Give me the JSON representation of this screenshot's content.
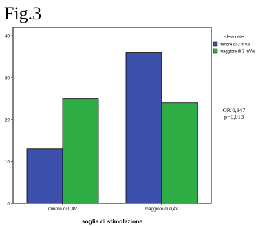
{
  "figure_label": "Fig.3",
  "chart_data": {
    "type": "bar",
    "categories": [
      "minore di 0,4V",
      "maggiore di 0,4V"
    ],
    "series": [
      {
        "name": "minore di  3 mV/s",
        "values": [
          13,
          36
        ],
        "color": "#3c4faa"
      },
      {
        "name": "maggiore di 3 mV/s",
        "values": [
          25,
          24
        ],
        "color": "#2fad45"
      }
    ],
    "xlabel": "soglia di stimolazione",
    "ylabel": "",
    "ylim": [
      0,
      42
    ],
    "yticks": [
      0,
      10,
      20,
      30,
      40
    ],
    "legend_title": "slew rate",
    "legend_position": "right",
    "grid": false
  },
  "annotation": {
    "line1": "OR 0,347",
    "line2": "p=0,013"
  }
}
